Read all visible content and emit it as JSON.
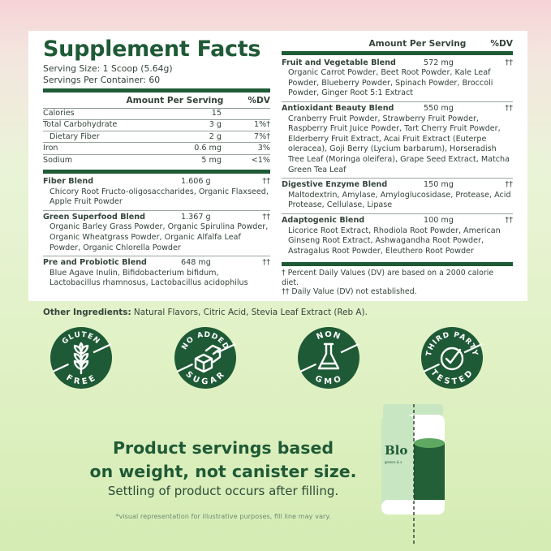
{
  "title": "Supplement Facts",
  "serving_size": "Serving Size: 1 Scoop (5.64g)",
  "servings_per_container": "Servings Per Container: 60",
  "header": {
    "amount": "Amount Per Serving",
    "dv": "%DV"
  },
  "nutrients": [
    {
      "name": "Calories",
      "amount": "15",
      "dv": ""
    },
    {
      "name": "Total Carbohydrate",
      "amount": "3 g",
      "dv": "1%†"
    },
    {
      "name": "Dietary Fiber",
      "amount": "2 g",
      "dv": "7%†",
      "indent": true
    },
    {
      "name": "Iron",
      "amount": "0.6 mg",
      "dv": "3%"
    },
    {
      "name": "Sodium",
      "amount": "5 mg",
      "dv": "<1%"
    }
  ],
  "left_blends": [
    {
      "name": "Fiber Blend",
      "amount": "1.606 g",
      "dv": "††",
      "ingredients": "Chicory Root Fructo-oligosaccharides, Organic Flaxseed, Apple Fruit Powder"
    },
    {
      "name": "Green Superfood Blend",
      "amount": "1.367 g",
      "dv": "††",
      "ingredients": "Organic Barley Grass Powder, Organic Spirulina Powder, Organic Wheatgrass Powder, Organic Alfalfa Leaf Powder, Organic Chlorella Powder"
    },
    {
      "name": "Pre and Probiotic Blend",
      "amount": "648 mg",
      "dv": "††",
      "ingredients": "Blue Agave Inulin, Bifidobacterium bifidum, Lactobacillus rhamnosus, Lactobacillus acidophilus"
    }
  ],
  "right_blends": [
    {
      "name": "Fruit and Vegetable Blend",
      "amount": "572 mg",
      "dv": "††",
      "ingredients": "Organic Carrot Powder, Beet Root Powder, Kale Leaf Powder, Blueberry Powder, Spinach Powder, Broccoli Powder, Ginger Root 5:1 Extract"
    },
    {
      "name": "Antioxidant Beauty Blend",
      "amount": "550 mg",
      "dv": "††",
      "ingredients": "Cranberry Fruit Powder, Strawberry Fruit Powder, Raspberry Fruit Juice Powder, Tart Cherry Fruit Powder, Elderberry Fruit Extract, Acai Fruit Extract (Euterpe oleracea), Goji Berry (Lycium barbarum), Horseradish Tree Leaf (Moringa oleifera), Grape Seed Extract, Matcha Green Tea Leaf"
    },
    {
      "name": "Digestive Enzyme Blend",
      "amount": "150 mg",
      "dv": "††",
      "ingredients": "Maltodextrin, Amylase, Amyloglucosidase, Protease, Acid Protease, Cellulase, Lipase"
    },
    {
      "name": "Adaptogenic Blend",
      "amount": "100 mg",
      "dv": "††",
      "ingredients": "Licorice Root Extract, Rhodiola Root Powder, American Ginseng Root Extract, Ashwagandha Root Powder, Astragalus Root Powder, Eleuthero Root Powder"
    }
  ],
  "footnotes": [
    "† Percent Daily Values (DV) are based on a 2000 calorie diet.",
    "†† Daily Value (DV) not established."
  ],
  "other_ingredients": {
    "label": "Other Ingredients:",
    "text": " Natural Flavors, Citric Acid, Stevia Leaf Extract (Reb A)."
  },
  "badges": [
    {
      "top": "GLUTEN",
      "bottom": "FREE",
      "icon": "wheat-icon"
    },
    {
      "top": "NO ADDED",
      "bottom": "SUGAR",
      "icon": "sugar-cube-icon"
    },
    {
      "top": "NON",
      "bottom": "GMO",
      "icon": "flask-icon"
    },
    {
      "top": "THIRD PARTY",
      "bottom": "TESTED",
      "icon": "check-circle-icon"
    }
  ],
  "headline": [
    "Product servings based",
    "on weight, not canister size."
  ],
  "subline": "Settling of product occurs after filling.",
  "disclaimer": "*visual representation for illustrative purposes, fill line may vary.",
  "canister": {
    "logo": "Blo",
    "tagline": "greens & s"
  },
  "colors": {
    "brand_green": "#1f5a36",
    "light_green": "#c8e6c0"
  }
}
